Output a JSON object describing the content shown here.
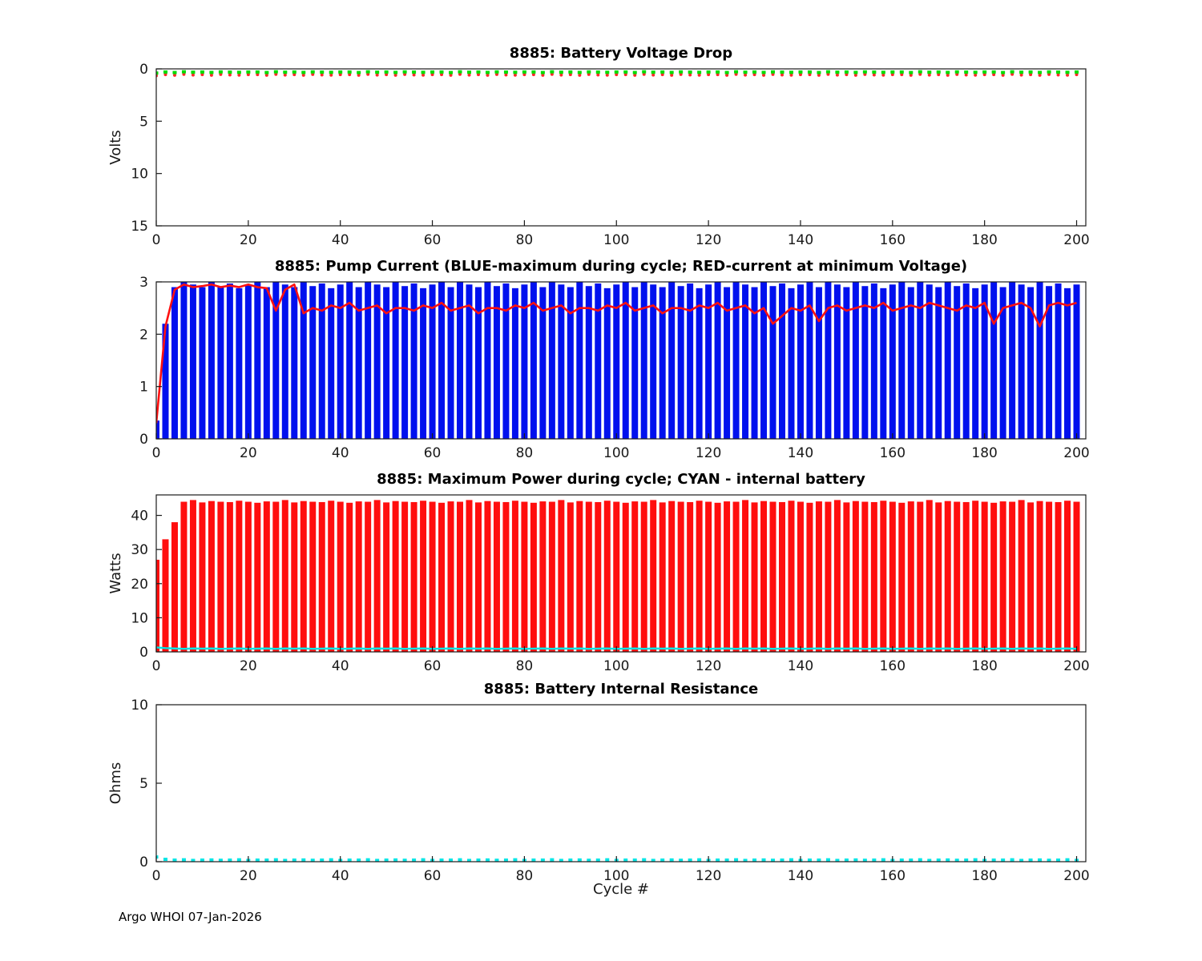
{
  "footer": {
    "text": "Argo WHOI 07-Jan-2026"
  },
  "cycles": [
    0,
    2,
    4,
    6,
    8,
    10,
    12,
    14,
    16,
    18,
    20,
    22,
    24,
    26,
    28,
    30,
    32,
    34,
    36,
    38,
    40,
    42,
    44,
    46,
    48,
    50,
    52,
    54,
    56,
    58,
    60,
    62,
    64,
    66,
    68,
    70,
    72,
    74,
    76,
    78,
    80,
    82,
    84,
    86,
    88,
    90,
    92,
    94,
    96,
    98,
    100,
    102,
    104,
    106,
    108,
    110,
    112,
    114,
    116,
    118,
    120,
    122,
    124,
    126,
    128,
    130,
    132,
    134,
    136,
    138,
    140,
    142,
    144,
    146,
    148,
    150,
    152,
    154,
    156,
    158,
    160,
    162,
    164,
    166,
    168,
    170,
    172,
    174,
    176,
    178,
    180,
    182,
    184,
    186,
    188,
    190,
    192,
    194,
    196,
    198,
    200
  ],
  "chart_data": [
    {
      "id": "battery_voltage_drop",
      "type": "scatter",
      "title": "8885: Battery Voltage Drop",
      "ylabel": "Volts",
      "xlabel": "",
      "ylim": [
        0,
        15
      ],
      "y_reversed": true,
      "yticks": [
        0,
        5,
        10,
        15
      ],
      "xlim": [
        0,
        202
      ],
      "xticks": [
        0,
        20,
        40,
        60,
        80,
        100,
        120,
        140,
        160,
        180,
        200
      ],
      "x_ref": "cycles",
      "legend": "none",
      "grid": false,
      "series": [
        {
          "name": "voltage-drop-red",
          "color": "#ff2a2a",
          "style": "dots",
          "values": [
            0.65,
            0.55,
            0.6,
            0.52,
            0.58,
            0.55,
            0.6,
            0.53,
            0.57,
            0.59,
            0.55,
            0.55,
            0.6,
            0.52,
            0.58,
            0.55,
            0.6,
            0.53,
            0.57,
            0.59,
            0.55,
            0.55,
            0.6,
            0.52,
            0.58,
            0.55,
            0.6,
            0.53,
            0.57,
            0.59,
            0.55,
            0.55,
            0.6,
            0.52,
            0.58,
            0.55,
            0.6,
            0.53,
            0.57,
            0.59,
            0.55,
            0.55,
            0.6,
            0.52,
            0.58,
            0.55,
            0.6,
            0.53,
            0.57,
            0.59,
            0.55,
            0.55,
            0.6,
            0.52,
            0.58,
            0.55,
            0.6,
            0.53,
            0.57,
            0.59,
            0.55,
            0.55,
            0.6,
            0.52,
            0.58,
            0.55,
            0.6,
            0.53,
            0.57,
            0.59,
            0.55,
            0.55,
            0.6,
            0.52,
            0.58,
            0.55,
            0.6,
            0.53,
            0.57,
            0.59,
            0.55,
            0.55,
            0.6,
            0.52,
            0.58,
            0.55,
            0.6,
            0.53,
            0.57,
            0.59,
            0.55,
            0.55,
            0.6,
            0.52,
            0.58,
            0.55,
            0.6,
            0.53,
            0.57,
            0.59,
            0.55
          ]
        },
        {
          "name": "voltage-drop-green",
          "color": "#00dd00",
          "style": "squares",
          "values": [
            0.4,
            0.3,
            0.35,
            0.28,
            0.32,
            0.3,
            0.34,
            0.29,
            0.31,
            0.33,
            0.3,
            0.3,
            0.35,
            0.28,
            0.32,
            0.3,
            0.34,
            0.29,
            0.31,
            0.33,
            0.3,
            0.3,
            0.35,
            0.28,
            0.32,
            0.3,
            0.34,
            0.29,
            0.31,
            0.33,
            0.3,
            0.3,
            0.35,
            0.28,
            0.32,
            0.3,
            0.34,
            0.29,
            0.31,
            0.33,
            0.3,
            0.3,
            0.35,
            0.28,
            0.32,
            0.3,
            0.34,
            0.29,
            0.31,
            0.33,
            0.3,
            0.3,
            0.35,
            0.28,
            0.32,
            0.3,
            0.34,
            0.29,
            0.31,
            0.33,
            0.3,
            0.3,
            0.35,
            0.28,
            0.32,
            0.3,
            0.34,
            0.29,
            0.31,
            0.33,
            0.3,
            0.3,
            0.35,
            0.28,
            0.32,
            0.3,
            0.34,
            0.29,
            0.31,
            0.33,
            0.3,
            0.3,
            0.35,
            0.28,
            0.32,
            0.3,
            0.34,
            0.29,
            0.31,
            0.33,
            0.3,
            0.3,
            0.35,
            0.28,
            0.32,
            0.3,
            0.34,
            0.29,
            0.31,
            0.33,
            0.3
          ]
        }
      ]
    },
    {
      "id": "pump_current",
      "type": "bar",
      "title": "8885: Pump Current (BLUE-maximum during cycle; RED-current at minimum Voltage)",
      "ylabel": "",
      "xlabel": "",
      "ylim": [
        0,
        3
      ],
      "y_reversed": false,
      "yticks": [
        0,
        1,
        2,
        3
      ],
      "xlim": [
        0,
        202
      ],
      "xticks": [
        0,
        20,
        40,
        60,
        80,
        100,
        120,
        140,
        160,
        180,
        200
      ],
      "x_ref": "cycles",
      "legend": "none",
      "grid": false,
      "series": [
        {
          "name": "max-pump-current-blue-bars",
          "color": "#0010ee",
          "style": "bars",
          "width": 8,
          "values": [
            0.35,
            2.2,
            2.9,
            3,
            2.95,
            2.9,
            3,
            2.92,
            2.97,
            2.88,
            2.95,
            3,
            2.9,
            3,
            2.95,
            2.9,
            3,
            2.92,
            2.97,
            2.88,
            2.95,
            3,
            2.9,
            3,
            2.95,
            2.9,
            3,
            2.92,
            2.97,
            2.88,
            2.95,
            3,
            2.9,
            3,
            2.95,
            2.9,
            3,
            2.92,
            2.97,
            2.88,
            2.95,
            3,
            2.9,
            3,
            2.95,
            2.9,
            3,
            2.92,
            2.97,
            2.88,
            2.95,
            3,
            2.9,
            3,
            2.95,
            2.9,
            3,
            2.92,
            2.97,
            2.88,
            2.95,
            3,
            2.9,
            3,
            2.95,
            2.9,
            3,
            2.92,
            2.97,
            2.88,
            2.95,
            3,
            2.9,
            3,
            2.95,
            2.9,
            3,
            2.92,
            2.97,
            2.88,
            2.95,
            3,
            2.9,
            3,
            2.95,
            2.9,
            3,
            2.92,
            2.97,
            2.88,
            2.95,
            3,
            2.9,
            3,
            2.95,
            2.9,
            3,
            2.92,
            2.97,
            2.88,
            2.95
          ]
        },
        {
          "name": "current-at-min-voltage-red-line",
          "color": "#ff1010",
          "style": "line",
          "line_width": 2.6,
          "values": [
            0.3,
            2.15,
            2.85,
            2.95,
            2.9,
            2.92,
            2.95,
            2.9,
            2.93,
            2.9,
            2.95,
            2.9,
            2.88,
            2.45,
            2.85,
            2.95,
            2.4,
            2.5,
            2.45,
            2.55,
            2.5,
            2.6,
            2.45,
            2.5,
            2.55,
            2.4,
            2.5,
            2.5,
            2.45,
            2.55,
            2.5,
            2.6,
            2.45,
            2.5,
            2.55,
            2.4,
            2.5,
            2.5,
            2.45,
            2.55,
            2.5,
            2.6,
            2.45,
            2.5,
            2.55,
            2.4,
            2.5,
            2.5,
            2.45,
            2.55,
            2.5,
            2.6,
            2.45,
            2.5,
            2.55,
            2.4,
            2.5,
            2.5,
            2.45,
            2.55,
            2.5,
            2.6,
            2.45,
            2.5,
            2.55,
            2.4,
            2.5,
            2.2,
            2.35,
            2.5,
            2.45,
            2.55,
            2.25,
            2.5,
            2.55,
            2.45,
            2.5,
            2.55,
            2.5,
            2.6,
            2.45,
            2.5,
            2.55,
            2.5,
            2.6,
            2.55,
            2.5,
            2.45,
            2.55,
            2.5,
            2.6,
            2.2,
            2.5,
            2.55,
            2.6,
            2.5,
            2.15,
            2.55,
            2.6,
            2.55,
            2.6
          ]
        }
      ]
    },
    {
      "id": "max_power",
      "type": "bar",
      "title": "8885: Maximum Power during cycle; CYAN - internal battery",
      "ylabel": "Watts",
      "xlabel": "",
      "ylim": [
        0,
        46
      ],
      "y_reversed": false,
      "yticks": [
        0,
        10,
        20,
        30,
        40
      ],
      "xlim": [
        0,
        202
      ],
      "xticks": [
        0,
        20,
        40,
        60,
        80,
        100,
        120,
        140,
        160,
        180,
        200
      ],
      "x_ref": "cycles",
      "legend": "none",
      "grid": false,
      "series": [
        {
          "name": "max-power-red-bars",
          "color": "#ff0e0e",
          "style": "bars",
          "width": 8,
          "values": [
            27,
            33,
            38,
            44,
            44.5,
            43.8,
            44.2,
            44,
            43.9,
            44.3,
            44,
            43.7,
            44.1,
            44,
            44.5,
            43.8,
            44.2,
            44,
            43.9,
            44.3,
            44,
            43.7,
            44.1,
            44,
            44.5,
            43.8,
            44.2,
            44,
            43.9,
            44.3,
            44,
            43.7,
            44.1,
            44,
            44.5,
            43.8,
            44.2,
            44,
            43.9,
            44.3,
            44,
            43.7,
            44.1,
            44,
            44.5,
            43.8,
            44.2,
            44,
            43.9,
            44.3,
            44,
            43.7,
            44.1,
            44,
            44.5,
            43.8,
            44.2,
            44,
            43.9,
            44.3,
            44,
            43.7,
            44.1,
            44,
            44.5,
            43.8,
            44.2,
            44,
            43.9,
            44.3,
            44,
            43.7,
            44.1,
            44,
            44.5,
            43.8,
            44.2,
            44,
            43.9,
            44.3,
            44,
            43.7,
            44.1,
            44,
            44.5,
            43.8,
            44.2,
            44,
            43.9,
            44.3,
            44,
            43.7,
            44.1,
            44,
            44.5,
            43.8,
            44.2,
            44,
            43.9,
            44.3,
            44
          ]
        },
        {
          "name": "internal-battery-power-cyan-line",
          "color": "#00e5e5",
          "style": "line",
          "line_width": 2.4,
          "values": [
            1.3,
            1.1,
            1,
            0.9,
            1,
            0.95,
            1,
            0.9,
            0.95,
            1,
            0.9,
            0.95,
            1,
            0.9,
            1,
            0.95,
            1,
            0.9,
            0.95,
            1,
            0.9,
            0.95,
            1,
            0.9,
            1,
            0.95,
            1,
            0.9,
            0.95,
            1,
            0.9,
            0.95,
            1,
            0.9,
            1,
            0.95,
            1,
            0.9,
            0.95,
            1,
            0.9,
            0.95,
            1,
            0.9,
            1,
            0.95,
            1,
            0.9,
            0.95,
            1,
            0.9,
            0.95,
            1,
            0.9,
            1,
            0.95,
            1,
            0.9,
            0.95,
            1,
            0.9,
            0.95,
            1,
            0.9,
            1,
            0.95,
            1,
            0.9,
            0.95,
            1,
            0.9,
            0.95,
            1,
            0.9,
            1,
            0.95,
            1,
            0.9,
            0.95,
            1,
            0.9,
            0.95,
            1,
            0.9,
            1,
            0.95,
            1,
            0.9,
            0.95,
            1,
            0.9,
            0.95,
            1,
            0.9,
            1,
            0.95,
            1,
            0.9,
            0.95,
            1,
            0.9
          ]
        }
      ]
    },
    {
      "id": "internal_resistance",
      "type": "scatter",
      "title": "8885: Battery Internal Resistance",
      "ylabel": "Ohms",
      "xlabel": "Cycle #",
      "ylim": [
        0,
        10
      ],
      "y_reversed": false,
      "yticks": [
        0,
        5,
        10
      ],
      "xlim": [
        0,
        202
      ],
      "xticks": [
        0,
        20,
        40,
        60,
        80,
        100,
        120,
        140,
        160,
        180,
        200
      ],
      "x_ref": "cycles",
      "legend": "none",
      "grid": false,
      "series": [
        {
          "name": "internal-resistance-cyan",
          "color": "#00e5e5",
          "style": "squares",
          "values": [
            0.3,
            0.15,
            0.1,
            0.12,
            0.08,
            0.1,
            0.11,
            0.09,
            0.1,
            0.12,
            0.08,
            0.1,
            0.1,
            0.12,
            0.08,
            0.1,
            0.11,
            0.09,
            0.1,
            0.12,
            0.08,
            0.1,
            0.1,
            0.12,
            0.08,
            0.1,
            0.11,
            0.09,
            0.1,
            0.12,
            0.08,
            0.1,
            0.1,
            0.12,
            0.08,
            0.1,
            0.11,
            0.09,
            0.1,
            0.12,
            0.08,
            0.1,
            0.1,
            0.12,
            0.08,
            0.1,
            0.11,
            0.09,
            0.1,
            0.12,
            0.08,
            0.1,
            0.1,
            0.12,
            0.08,
            0.1,
            0.11,
            0.09,
            0.1,
            0.12,
            0.08,
            0.1,
            0.1,
            0.12,
            0.08,
            0.1,
            0.11,
            0.09,
            0.1,
            0.12,
            0.08,
            0.1,
            0.1,
            0.12,
            0.08,
            0.1,
            0.11,
            0.09,
            0.1,
            0.12,
            0.08,
            0.1,
            0.1,
            0.12,
            0.08,
            0.1,
            0.11,
            0.09,
            0.1,
            0.12,
            0.08,
            0.1,
            0.1,
            0.12,
            0.08,
            0.1,
            0.11,
            0.09,
            0.1,
            0.12,
            0.08
          ]
        }
      ]
    }
  ]
}
